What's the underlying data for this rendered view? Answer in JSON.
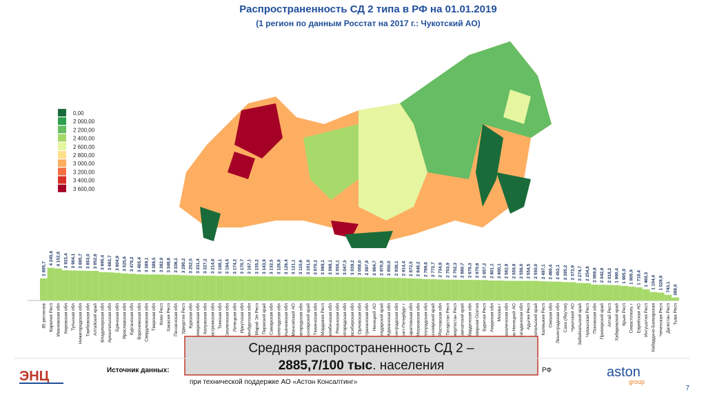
{
  "chart_data": {
    "type": "bar",
    "title": "Распространенность СД 2 типа в РФ на 01.01.2019",
    "subtitle": "(1 регион по данным Росстат на 2017 г.: Чукотский АО)",
    "color": "#a6d96a",
    "ylim": [
      0,
      4300
    ],
    "categories": [
      "85 регионов",
      "Карелия Респ",
      "Ивановская обл",
      "Кировская обл",
      "Тульская обл",
      "Нижегородская обл",
      "Тамбовская обл",
      "Алтайский край",
      "Владимирская обл",
      "Архангельская обл",
      "Брянская обл",
      "Ярославская обл",
      "Курганская обл",
      "Воронежская обл",
      "Свердловская обл",
      "Тверская обл",
      "Коми Респ",
      "Хакасия Респ",
      "Пензенская обл",
      "Удмуртия Респ",
      "Курская обл",
      "Кемеровская обл",
      "Калужская обл",
      "Костромская обл",
      "Томская обл",
      "Смоленская обл",
      "Липецкая обл",
      "Иркутская обл",
      "Оренбургская обл",
      "Марий Эл Респ",
      "Пермский край",
      "Самарская обл",
      "Вологодская обл",
      "Ульяновская обл",
      "Ханты-Мансийский АО",
      "Новгородская обл",
      "Красноярский край",
      "Тюменская обл",
      "Мордовия Респ",
      "Челябинская обл",
      "Рязанская обл",
      "Белгородская обл",
      "Новосибирская обл",
      "Орловская обл",
      "Астраханская обл",
      "Ненецкий АО",
      "Краснодарский край",
      "Мурманская обл",
      "Калининградская обл",
      "Санкт-Петербург г",
      "Саратовская обл",
      "Московская обл",
      "Волгоградская обл",
      "Красноярский край",
      "Ростовская обл",
      "Татарстан Респ",
      "Башкортостан Респ",
      "Камчатский край",
      "Кабардинская обл",
      "Северная Осетия",
      "Бурятия Респ",
      "Амурская обл",
      "Москва г",
      "Сахалинская обл",
      "Ямало-Ненецкий АО",
      "Магаданская обл",
      "Адыгея Респ",
      "Ставропольский край",
      "Калмыкия Респ",
      "Омская обл",
      "Ленинградская обл",
      "Саха (Якутия)",
      "Чукотский АО",
      "Забайкальский край",
      "Чувашская Респ",
      "Псковская обл",
      "Приморский край",
      "Алтай Респ",
      "Хабаровский край",
      "Крым Респ",
      "Севастополь г",
      "Еврейская АО",
      "Ингушетия Респ",
      "Кабардино-Балкарская",
      "Чеченская Респ",
      "Дагестан Респ",
      "Тыва Респ"
    ],
    "values": [
      2885.7,
      4245.6,
      4152.8,
      3923.4,
      3904.1,
      3885.7,
      3853.0,
      3852.6,
      3695.4,
      3662.7,
      3604.9,
      3525.6,
      3479.2,
      3405.4,
      3389.1,
      3388.5,
      3382.0,
      3348.6,
      3336.1,
      3290.2,
      3252.5,
      3231.4,
      3227.2,
      3214.6,
      3188.1,
      3184.5,
      3174.2,
      3170.7,
      3167.1,
      3155.2,
      3143.9,
      3132.5,
      3126.8,
      3126.4,
      3121.1,
      3110.6,
      3101.0,
      3070.2,
      3069.1,
      3068.1,
      3050.1,
      3047.5,
      3039.2,
      3008.0,
      2997.9,
      2984.7,
      2970.8,
      2950.0,
      2938.1,
      2914.4,
      2872.5,
      2848.2,
      2789.6,
      2772.7,
      2734.8,
      2703.9,
      2702.3,
      2680.7,
      2676.3,
      2670.6,
      2657.2,
      2601.1,
      2600.1,
      2562.9,
      2559.9,
      2556.0,
      2554.5,
      2550.0,
      2497.1,
      2460.4,
      2452.1,
      2395.2,
      2372.9,
      2274.7,
      2254.8,
      2069.8,
      2042.8,
      2018.2,
      1990.4,
      1905.9,
      1805.9,
      1718.4,
      1469.3,
      1104.4,
      1028.9,
      743.1,
      386.0
    ],
    "value_labels": [
      "2 885,7",
      "4 245,6",
      "4 152,8",
      "3 923,4",
      "3 904,1",
      "3 885,7",
      "3 853,0",
      "3 852,6",
      "3 695,4",
      "3 662,7",
      "3 604,9",
      "3 525,6",
      "3 479,2",
      "3 405,4",
      "3 389,1",
      "3 388,5",
      "3 382,0",
      "3 348,6",
      "3 336,1",
      "3 290,2",
      "3 252,5",
      "3 231,4",
      "3 227,2",
      "3 214,6",
      "3 188,1",
      "3 184,5",
      "3 174,2",
      "3 170,7",
      "3 167,1",
      "3 155,2",
      "3 143,9",
      "3 132,5",
      "3 126,8",
      "3 126,4",
      "3 121,1",
      "3 110,6",
      "3 101,0",
      "3 070,2",
      "3 069,1",
      "3 068,1",
      "3 050,1",
      "3 047,5",
      "3 039,2",
      "3 008,0",
      "2 997,9",
      "2 984,7",
      "2 970,8",
      "2 950,0",
      "2 938,1",
      "2 914,4",
      "2 872,5",
      "2 848,2",
      "2 789,6",
      "2 772,7",
      "2 734,8",
      "2 703,9",
      "2 702,3",
      "2 680,7",
      "2 676,3",
      "2 670,6",
      "2 657,2",
      "2 601,1",
      "2 600,1",
      "2 562,9",
      "2 559,9",
      "2 556,0",
      "2 554,5",
      "2 550,0",
      "2 497,1",
      "2 460,4",
      "2 452,1",
      "2 395,2",
      "2 372,9",
      "2 274,7",
      "2 254,8",
      "2 069,8",
      "2 042,8",
      "2 018,2",
      "1 990,4",
      "1 905,9",
      "1 805,9",
      "1 718,4",
      "1 469,3",
      "1 104,4",
      "1 028,9",
      "743,1",
      "386,0"
    ],
    "legend": [
      {
        "label": "0,00",
        "color": "#1a6b3a"
      },
      {
        "label": "2 000,00",
        "color": "#2e9e4f"
      },
      {
        "label": "2 200,00",
        "color": "#66bd63"
      },
      {
        "label": "2 400,00",
        "color": "#a6d96a"
      },
      {
        "label": "2 600,00",
        "color": "#e6f5a0"
      },
      {
        "label": "2 800,00",
        "color": "#fee08b"
      },
      {
        "label": "3 000,00",
        "color": "#fdae61"
      },
      {
        "label": "3 200,00",
        "color": "#f46d43"
      },
      {
        "label": "3 400,00",
        "color": "#d73027"
      },
      {
        "label": "3 600,00",
        "color": "#a50026"
      }
    ],
    "callout": {
      "line1": "Средняя распространенность СД 2 –",
      "bold": "2885,7/100 тыс",
      "line2": ". населения"
    },
    "footer": {
      "source": "Источник данных:",
      "support": "при технической поддержке АО «Астон Консалтинг»",
      "tail": "РФ",
      "logo_left": "ЭНЦ",
      "logo_right": "aston",
      "logo_right_sub": "group",
      "page": "7"
    }
  }
}
